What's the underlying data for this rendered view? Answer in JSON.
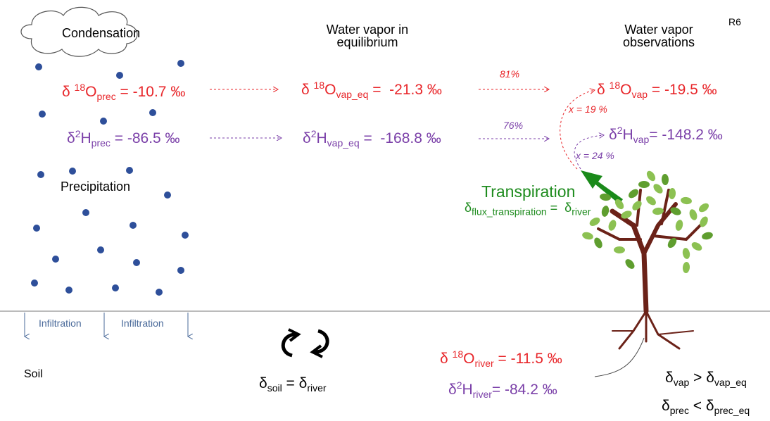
{
  "header": {
    "cloud_label": "Condensation",
    "equilibrium_title": [
      "Water vapor in",
      "equilibrium"
    ],
    "observations_title": [
      "Water vapor",
      "observations"
    ],
    "tag": "R6"
  },
  "formulas": {
    "o18_prec": [
      {
        "text": "δ "
      },
      {
        "sup": "18"
      },
      {
        "text": "O"
      },
      {
        "sub": "prec"
      },
      {
        "text": " = -10.7 ‰"
      }
    ],
    "h2_prec": [
      {
        "text": "δ"
      },
      {
        "sup": "2"
      },
      {
        "text": "H"
      },
      {
        "sub": "prec"
      },
      {
        "text": " = -86.5 ‰"
      }
    ],
    "o18_vap_eq": [
      {
        "text": "δ "
      },
      {
        "sup": "18"
      },
      {
        "text": "O"
      },
      {
        "sub": "vap_eq"
      },
      {
        "text": " =  -21.3 ‰"
      }
    ],
    "h2_vap_eq": [
      {
        "text": "δ"
      },
      {
        "sup": "2"
      },
      {
        "text": "H"
      },
      {
        "sub": "vap_eq"
      },
      {
        "text": " =  -168.8 ‰"
      }
    ],
    "o18_vap": [
      {
        "text": "δ "
      },
      {
        "sup": "18"
      },
      {
        "text": "O"
      },
      {
        "sub": "vap"
      },
      {
        "text": " = -19.5 ‰"
      }
    ],
    "h2_vap": [
      {
        "text": "δ"
      },
      {
        "sup": "2"
      },
      {
        "text": "H"
      },
      {
        "sub": "vap"
      },
      {
        "text": "= -148.2 ‰"
      }
    ],
    "flux": [
      {
        "text": "δ"
      },
      {
        "sub": "flux_transpiration"
      },
      {
        "text": " =  δ"
      },
      {
        "sub": "river"
      }
    ],
    "o18_river": [
      {
        "text": "δ "
      },
      {
        "sup": "18"
      },
      {
        "text": "O"
      },
      {
        "sub": "river"
      },
      {
        "text": " = -11.5 ‰"
      }
    ],
    "h2_river": [
      {
        "text": "δ"
      },
      {
        "sup": "2"
      },
      {
        "text": "H"
      },
      {
        "sub": "river"
      },
      {
        "text": "= -84.2 ‰"
      }
    ],
    "soil": [
      {
        "text": "δ"
      },
      {
        "sub": "soil"
      },
      {
        "text": " = δ"
      },
      {
        "sub": "river"
      }
    ],
    "ineq_vap": [
      {
        "text": "δ"
      },
      {
        "sub": "vap"
      },
      {
        "text": " > δ"
      },
      {
        "sub": "vap_eq"
      }
    ],
    "ineq_prec": [
      {
        "text": "δ"
      },
      {
        "sub": "prec"
      },
      {
        "text": " < δ"
      },
      {
        "sub": "prec_eq"
      }
    ]
  },
  "percentages": {
    "o18": "81%",
    "h2": "76%"
  },
  "mixing": {
    "o18": "x = 19 %",
    "h2": "x = 24 %"
  },
  "transpiration": "Transpiration",
  "precipitation": "Precipitation",
  "infiltration": [
    "Infiltration",
    "Infiltration"
  ],
  "soil": "Soil"
}
